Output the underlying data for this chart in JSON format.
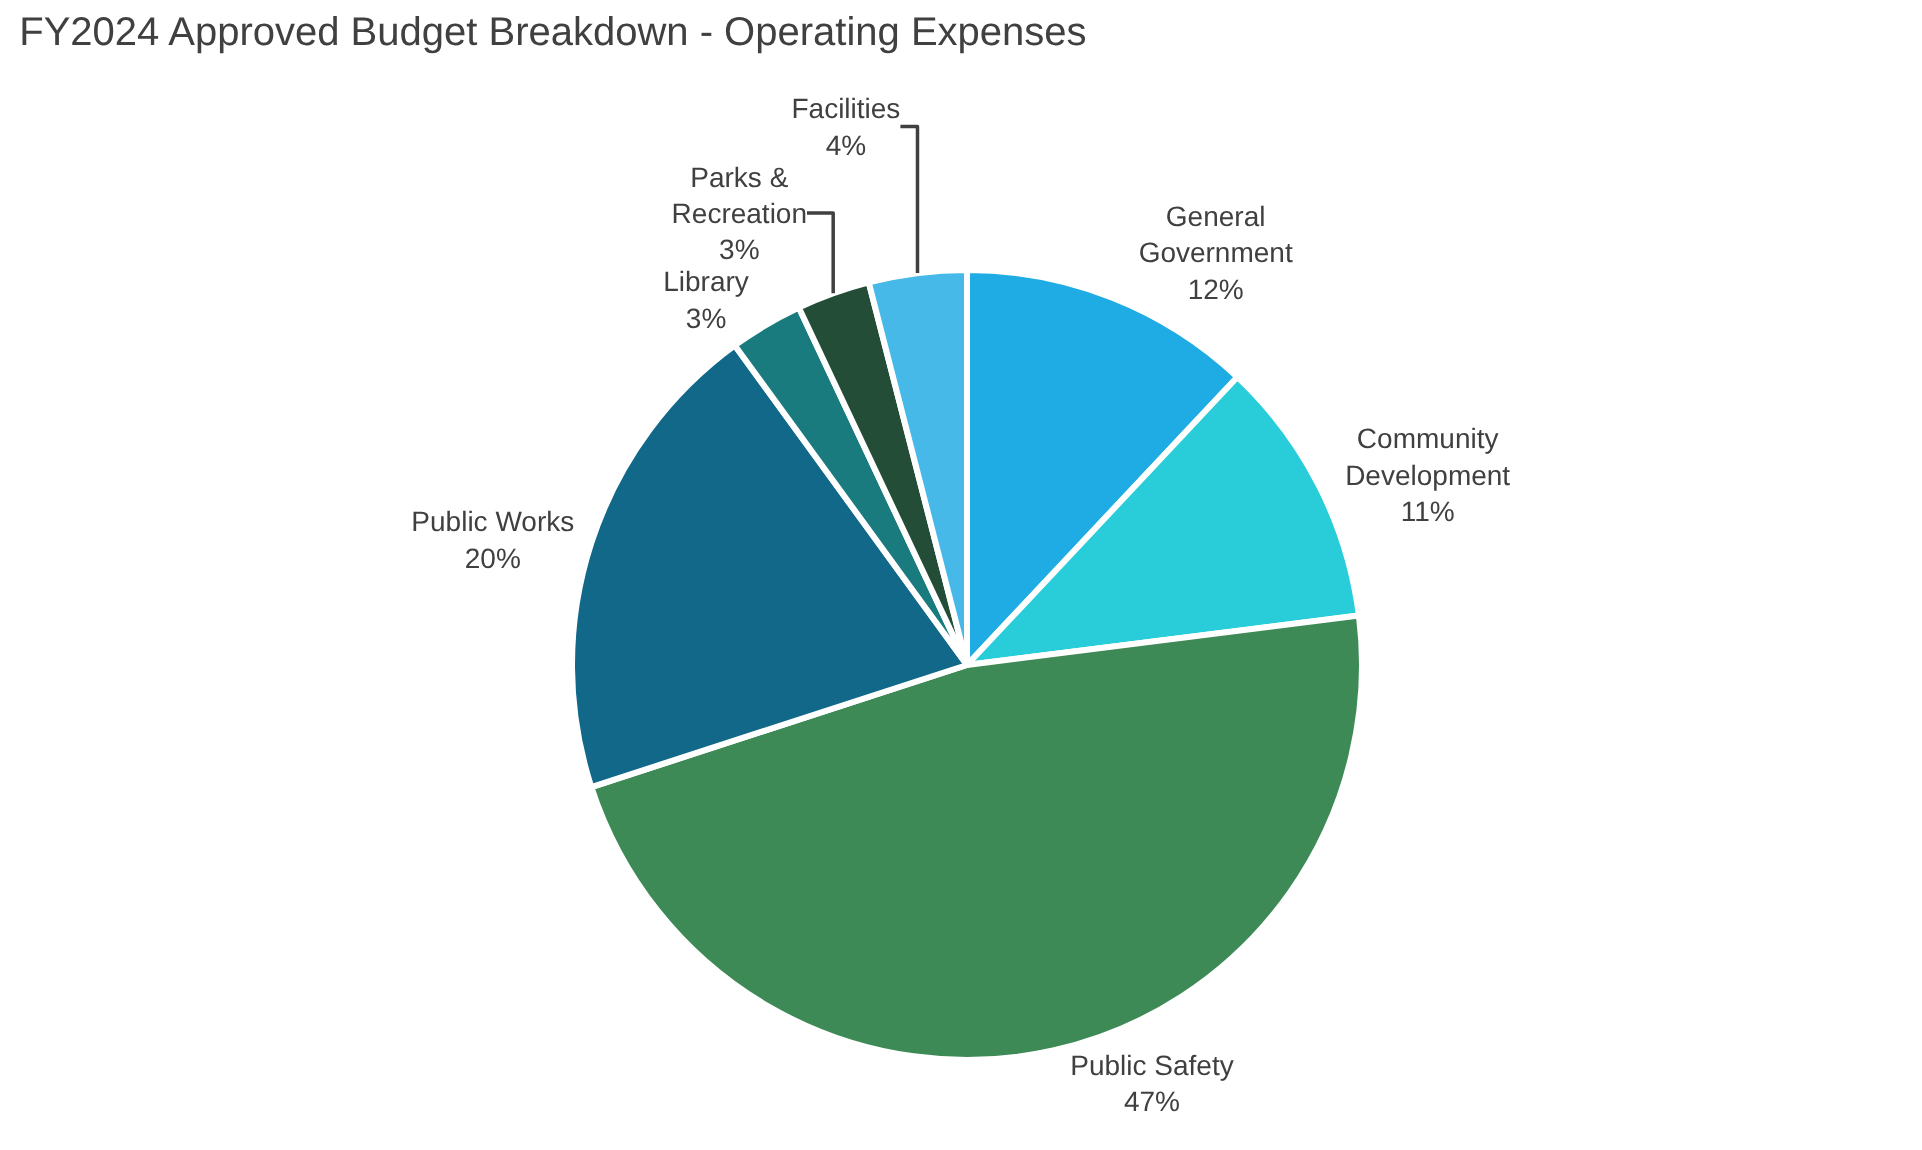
{
  "chart_data": {
    "type": "pie",
    "title": "FY2024 Approved Budget Breakdown - Operating Expenses",
    "categories": [
      "General Government",
      "Community Development",
      "Public Safety",
      "Public Works",
      "Library",
      "Parks & Recreation",
      "Facilities"
    ],
    "values": [
      12,
      11,
      47,
      20,
      3,
      3,
      4
    ],
    "value_labels": [
      "12%",
      "11%",
      "47%",
      "20%",
      "3%",
      "3%",
      "4%"
    ],
    "colors": [
      "#1fabe3",
      "#29cdd9",
      "#3e8a56",
      "#116888",
      "#1a7b7e",
      "#234d36",
      "#46b9e8"
    ],
    "legend": false
  }
}
